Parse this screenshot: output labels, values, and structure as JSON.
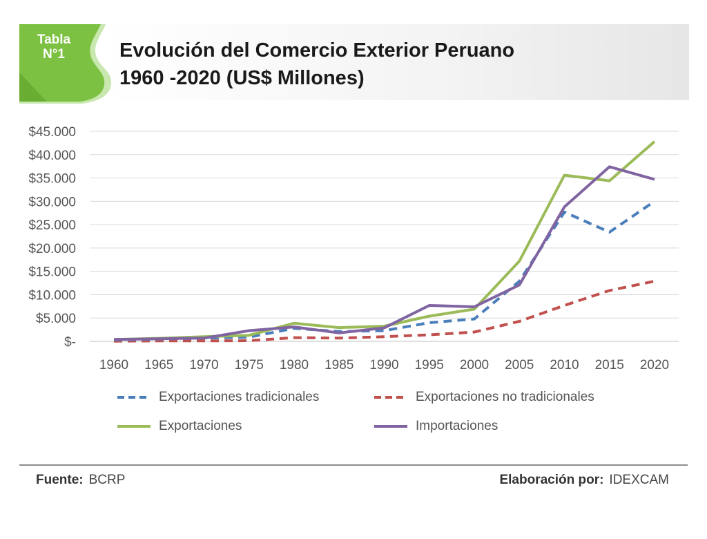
{
  "badge": {
    "line1": "Tabla",
    "line2": "N°1",
    "color": "#7dc142"
  },
  "title": {
    "line1": "Evolución del Comercio Exterior Peruano",
    "line2": "1960 -2020 (US$ Millones)"
  },
  "chart_data": {
    "type": "line",
    "x": [
      "1960",
      "1965",
      "1970",
      "1975",
      "1980",
      "1985",
      "1990",
      "1995",
      "2000",
      "2005",
      "2010",
      "2015",
      "2020"
    ],
    "ylim": [
      0,
      45000
    ],
    "yticks": [
      0,
      5000,
      10000,
      15000,
      20000,
      25000,
      30000,
      35000,
      40000,
      45000
    ],
    "ytick_labels": [
      "$-",
      "$5.000",
      "$10.000",
      "$15.000",
      "$20.000",
      "$25.000",
      "$30.000",
      "$35.000",
      "$40.000",
      "$45.000"
    ],
    "grid": true,
    "legend_position": "bottom",
    "series": [
      {
        "name": "Exportaciones tradicionales",
        "color": "#4a7ebb",
        "dash": true,
        "values": [
          300,
          500,
          700,
          900,
          2800,
          2100,
          2300,
          4000,
          4800,
          12900,
          27700,
          23400,
          30000
        ]
      },
      {
        "name": "Exportaciones no tradicionales",
        "color": "#c0504d",
        "dash": true,
        "values": [
          50,
          100,
          100,
          150,
          800,
          700,
          1000,
          1400,
          2000,
          4300,
          7700,
          10900,
          12900
        ]
      },
      {
        "name": "Exportaciones",
        "color": "#9bbb59",
        "dash": false,
        "values": [
          400,
          650,
          1000,
          1300,
          3900,
          2950,
          3250,
          5400,
          6900,
          17200,
          35600,
          34400,
          42800
        ]
      },
      {
        "name": "Importaciones",
        "color": "#8064a2",
        "dash": false,
        "values": [
          400,
          550,
          700,
          2300,
          3100,
          1800,
          2900,
          7700,
          7400,
          12100,
          28800,
          37400,
          34700
        ]
      }
    ]
  },
  "footer": {
    "source_label": "Fuente:",
    "source_value": "BCRP",
    "author_label": "Elaboración por:",
    "author_value": "IDEXCAM"
  }
}
